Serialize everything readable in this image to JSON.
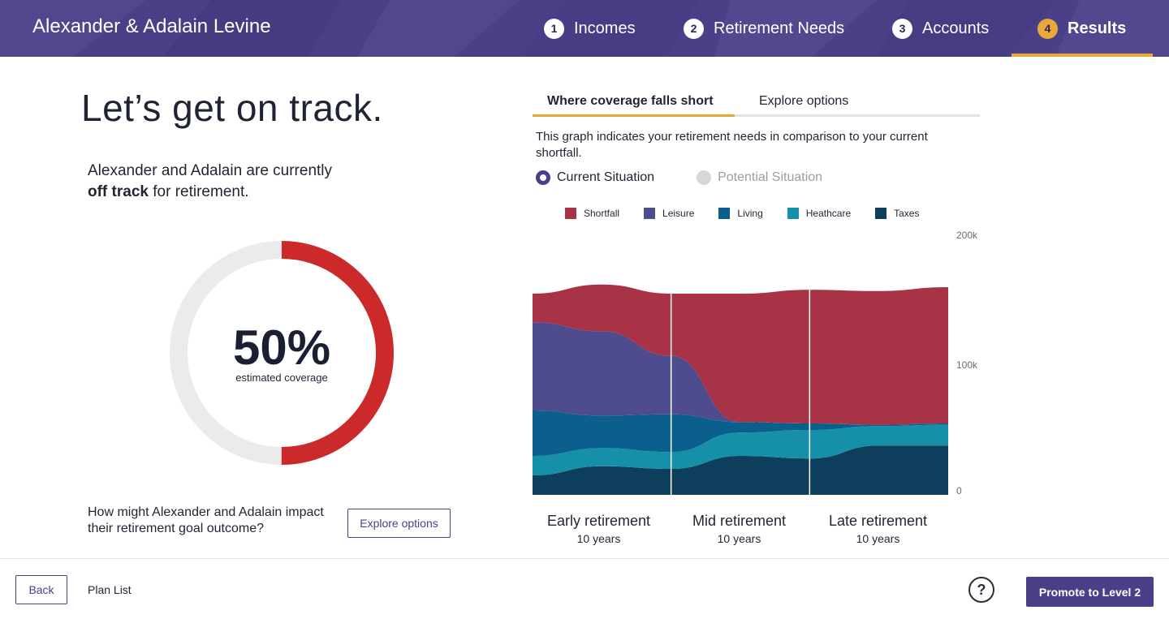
{
  "header": {
    "client_name": "Alexander & Adalain Levine",
    "steps": [
      {
        "num": "1",
        "label": "Incomes",
        "active": false
      },
      {
        "num": "2",
        "label": "Retirement Needs",
        "active": false
      },
      {
        "num": "3",
        "label": "Accounts",
        "active": false
      },
      {
        "num": "4",
        "label": "Results",
        "active": true
      }
    ]
  },
  "left": {
    "headline": "Let’s get on track.",
    "status_prefix": "Alexander and Adalain are currently",
    "status_bold": "off track",
    "status_suffix": " for retirement.",
    "coverage_percent": 50,
    "coverage_display": "50%",
    "coverage_label": "estimated coverage",
    "impact_question": "How might Alexander and Adalain impact their retirement goal outcome?",
    "explore_button": "Explore options"
  },
  "right": {
    "tabs": [
      {
        "label": "Where coverage falls short",
        "active": true
      },
      {
        "label": "Explore options",
        "active": false
      }
    ],
    "description": "This graph indicates your retirement needs in comparison to your current shortfall.",
    "radios": [
      {
        "label": "Current Situation",
        "selected": true
      },
      {
        "label": "Potential Situation",
        "selected": false
      }
    ]
  },
  "chart_data": {
    "type": "area",
    "stacked": true,
    "ylim": [
      0,
      200000
    ],
    "y_ticks": [
      "0",
      "100k",
      "200k"
    ],
    "legend": [
      {
        "name": "Shortfall",
        "color": "#a83246"
      },
      {
        "name": "Leisure",
        "color": "#4f4b8f"
      },
      {
        "name": "Living",
        "color": "#0b5f8c"
      },
      {
        "name": "Heathcare",
        "color": "#168fa8"
      },
      {
        "name": "Taxes",
        "color": "#0d3f5c"
      }
    ],
    "periods": [
      {
        "name": "Early retirement",
        "years": "10 years"
      },
      {
        "name": "Mid retirement",
        "years": "10 years"
      },
      {
        "name": "Late retirement",
        "years": "10 years"
      }
    ],
    "x": [
      0,
      5,
      10,
      15,
      20,
      25,
      30
    ],
    "series": [
      {
        "name": "Taxes",
        "values": [
          15000,
          22000,
          20000,
          30000,
          28000,
          38000,
          38000
        ]
      },
      {
        "name": "Heathcare",
        "values": [
          15000,
          14000,
          13000,
          18000,
          22000,
          15000,
          16000
        ]
      },
      {
        "name": "Living",
        "values": [
          35000,
          25000,
          29000,
          8000,
          5000,
          1000,
          1000
        ]
      },
      {
        "name": "Leisure",
        "values": [
          68000,
          65000,
          45000,
          0,
          0,
          0,
          0
        ]
      },
      {
        "name": "Shortfall",
        "values": [
          22000,
          36000,
          48000,
          99000,
          103000,
          103000,
          105000
        ]
      }
    ]
  },
  "footer": {
    "back": "Back",
    "plan_list": "Plan List",
    "help": "?",
    "promote": "Promote to Level 2"
  }
}
